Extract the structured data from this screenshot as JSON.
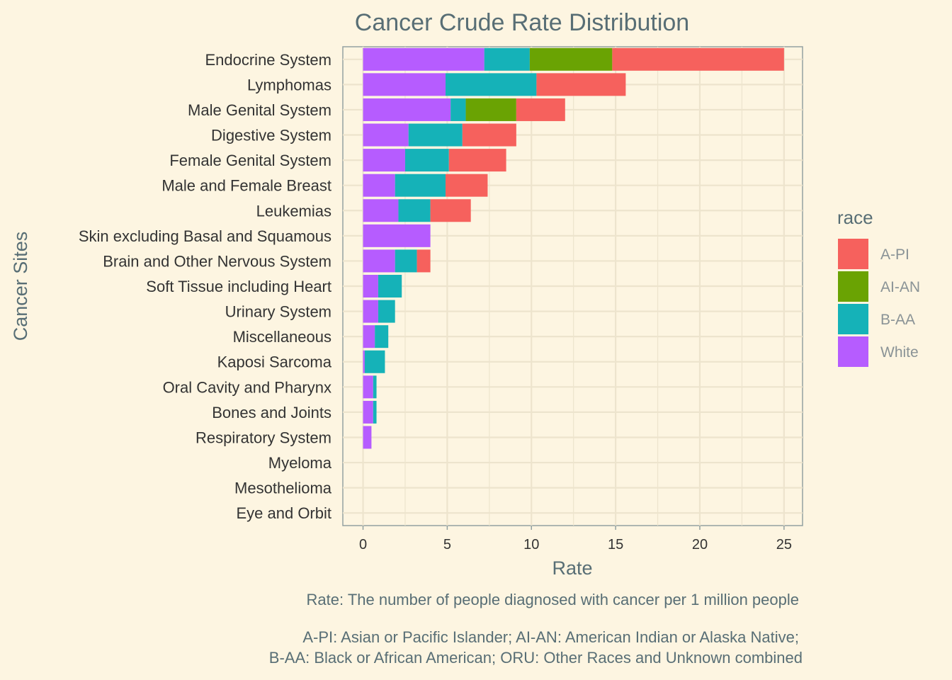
{
  "chart_data": {
    "type": "bar",
    "orientation": "horizontal",
    "stacked": true,
    "title": "Cancer Crude Rate Distribution",
    "xlabel": "Rate",
    "ylabel": "Cancer Sites",
    "xlim": [
      -1.2,
      26.1
    ],
    "xticks": [
      0,
      5,
      10,
      15,
      20,
      25
    ],
    "grid": true,
    "legend_position": "right",
    "categories": [
      "Endocrine System",
      "Lymphomas",
      "Male Genital System",
      "Digestive System",
      "Female Genital System",
      "Male and Female Breast",
      "Leukemias",
      "Skin excluding Basal and Squamous",
      "Brain and Other Nervous System",
      "Soft Tissue including Heart",
      "Urinary System",
      "Miscellaneous",
      "Kaposi Sarcoma",
      "Oral Cavity and Pharynx",
      "Bones and Joints",
      "Respiratory System",
      "Myeloma",
      "Mesothelioma",
      "Eye and Orbit"
    ],
    "series": [
      {
        "name": "White",
        "color": "#b65cff",
        "values": [
          7.2,
          4.9,
          5.2,
          2.7,
          2.5,
          1.9,
          2.1,
          4.0,
          1.9,
          0.9,
          0.9,
          0.7,
          0.1,
          0.6,
          0.6,
          0.5,
          0,
          0,
          0
        ]
      },
      {
        "name": "B-AA",
        "color": "#15b2b8",
        "values": [
          2.7,
          5.4,
          0.9,
          3.2,
          2.6,
          3.0,
          1.9,
          0,
          1.3,
          1.4,
          1.0,
          0.8,
          1.2,
          0.2,
          0.2,
          0,
          0,
          0,
          0
        ]
      },
      {
        "name": "AI-AN",
        "color": "#6aa303",
        "values": [
          4.9,
          0,
          3.0,
          0,
          0,
          0,
          0,
          0,
          0,
          0,
          0,
          0,
          0,
          0,
          0,
          0,
          0,
          0,
          0
        ]
      },
      {
        "name": "A-PI",
        "color": "#f6615d",
        "values": [
          10.2,
          5.3,
          2.9,
          3.2,
          3.4,
          2.5,
          2.4,
          0,
          0.8,
          0,
          0,
          0,
          0,
          0,
          0,
          0,
          0,
          0,
          0
        ]
      }
    ],
    "legend": {
      "title": "race",
      "order": [
        "A-PI",
        "AI-AN",
        "B-AA",
        "White"
      ]
    },
    "caption": [
      "Rate: The number of people diagnosed with cancer per 1 million people",
      "",
      "A-PI: Asian or Pacific Islander; AI-AN: American Indian or Alaska Native;",
      "B-AA: Black or African American; ORU: Other Races and Unknown combined"
    ]
  }
}
